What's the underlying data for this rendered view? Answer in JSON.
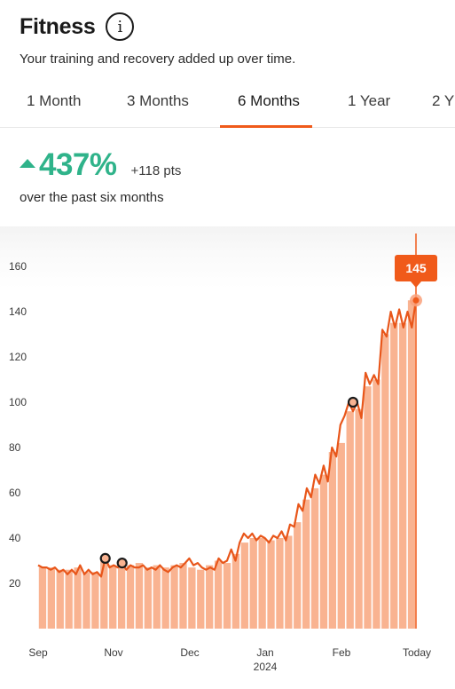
{
  "header": {
    "title": "Fitness",
    "info_icon": "info-icon",
    "subtitle": "Your training and recovery added up over time."
  },
  "tabs": [
    {
      "label": "1 Month",
      "active": false
    },
    {
      "label": "3 Months",
      "active": false
    },
    {
      "label": "6 Months",
      "active": true
    },
    {
      "label": "1 Year",
      "active": false
    },
    {
      "label": "2 Y",
      "active": false
    }
  ],
  "summary": {
    "change_percent": "437%",
    "change_points": "+118 pts",
    "period_text": "over the past six months",
    "trend_icon": "triangle-up-icon"
  },
  "colors": {
    "accent": "#f05a1a",
    "positive": "#2fb38a",
    "bar_fill": "#f9b391",
    "line": "#e8561a"
  },
  "chart_data": {
    "type": "area",
    "y_ticks": [
      20,
      40,
      60,
      80,
      100,
      120,
      140,
      160
    ],
    "ylim": [
      0,
      165
    ],
    "x_labels": [
      "Sep",
      "Nov",
      "Dec",
      "Jan",
      "Feb",
      "Today"
    ],
    "x_sublabel": "2024",
    "current_value": "145",
    "bar_values": [
      27,
      27,
      26,
      26,
      27,
      25,
      25,
      31,
      28,
      29,
      28,
      29,
      27,
      28,
      27,
      28,
      29,
      27,
      26,
      28,
      30,
      29,
      33,
      38,
      40,
      40,
      39,
      40,
      41,
      47,
      57,
      62,
      68,
      78,
      82,
      96,
      97,
      107,
      110,
      130,
      135,
      135,
      145
    ],
    "line_values": [
      28,
      27,
      27,
      26,
      27,
      25,
      26,
      24,
      26,
      24,
      28,
      24,
      26,
      24,
      25,
      23,
      31,
      27,
      28,
      27,
      29,
      26,
      28,
      27,
      27,
      28,
      26,
      27,
      26,
      28,
      26,
      25,
      27,
      28,
      27,
      29,
      31,
      28,
      29,
      27,
      26,
      27,
      26,
      31,
      29,
      30,
      35,
      30,
      38,
      42,
      40,
      42,
      39,
      41,
      40,
      38,
      41,
      40,
      43,
      39,
      46,
      45,
      55,
      52,
      62,
      58,
      68,
      64,
      72,
      65,
      80,
      76,
      90,
      94,
      100,
      96,
      100,
      93,
      113,
      108,
      112,
      108,
      132,
      129,
      140,
      133,
      141,
      133,
      140,
      133,
      145
    ],
    "markers": [
      {
        "index": 16,
        "value": 31
      },
      {
        "index": 20,
        "value": 29
      },
      {
        "index": 75,
        "value": 100
      }
    ]
  }
}
